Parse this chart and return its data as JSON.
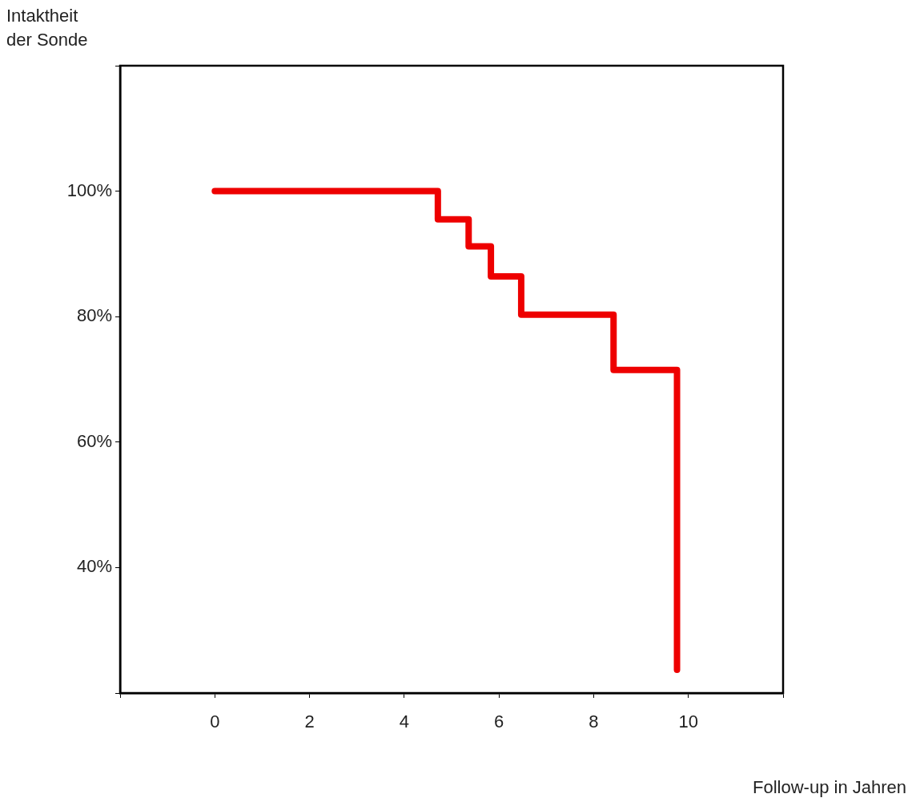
{
  "chart_data": {
    "type": "step",
    "xlabel": "Follow-up in Jahren",
    "ylabel": "Intaktheit\nder Sonde",
    "x": [
      0,
      4.71,
      5.36,
      5.83,
      6.47,
      8.42,
      9.76
    ],
    "series": [
      {
        "color": "#ee0000",
        "values": [
          100,
          95.5,
          91.2,
          86.4,
          80.3,
          71.5,
          23.7
        ]
      }
    ],
    "xlim": [
      -2,
      12
    ],
    "xticks": [
      {
        "value": -2,
        "label": null
      },
      0,
      2,
      4,
      6,
      8,
      10,
      {
        "value": 12,
        "label": null
      }
    ],
    "ylim": [
      20,
      120
    ],
    "yticks": [
      {
        "value": 20,
        "label": null
      },
      {
        "value": 40,
        "label": "40%"
      },
      {
        "value": 60,
        "label": "60%"
      },
      {
        "value": 80,
        "label": "80%"
      },
      {
        "value": 100,
        "label": "100%"
      },
      {
        "value": 120,
        "label": null
      }
    ],
    "grid": false,
    "legend": false,
    "marker": "none",
    "line_style": "solid"
  }
}
